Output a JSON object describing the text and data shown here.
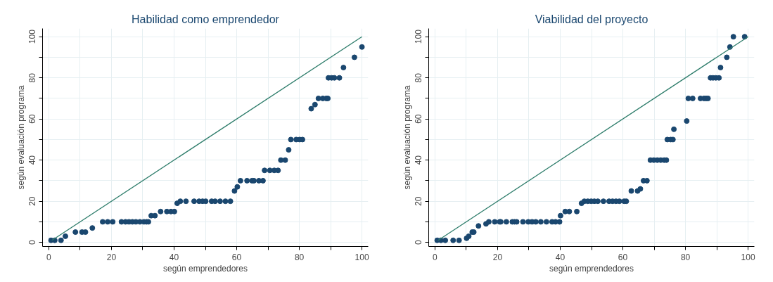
{
  "chart_data": [
    {
      "type": "scatter",
      "title": "Habilidad como emprendedor",
      "xlabel": "según emprendedores",
      "ylabel": "según evaluación programa",
      "xlim": [
        -2,
        102
      ],
      "ylim": [
        -2,
        104
      ],
      "xticks": [
        0,
        {
          "value": 10,
          "label": null
        },
        20,
        {
          "value": 30,
          "label": null
        },
        40,
        {
          "value": 50,
          "label": null
        },
        60,
        {
          "value": 70,
          "label": null
        },
        80,
        {
          "value": 90,
          "label": null
        },
        100
      ],
      "yticks": [
        0,
        {
          "value": 10,
          "label": null
        },
        20,
        {
          "value": 30,
          "label": null
        },
        40,
        {
          "value": 50,
          "label": null
        },
        60,
        {
          "value": 70,
          "label": null
        },
        80,
        {
          "value": 90,
          "label": null
        },
        100
      ],
      "grid": true,
      "series": [
        {
          "marker": "circle",
          "color": "#1a476f",
          "x": [
            0.7,
            1.9,
            3.9,
            5.3,
            8.5,
            10.6,
            11.7,
            13.9,
            17.2,
            18.8,
            20.4,
            23.2,
            24.5,
            25.6,
            26.7,
            27.8,
            29.1,
            30.4,
            31.2,
            31.8,
            32.7,
            33.9,
            35.7,
            37.7,
            39,
            40.1,
            41,
            42,
            43.8,
            46.4,
            48,
            49.1,
            50.1,
            52,
            53.1,
            54.7,
            56.4,
            58,
            59.3,
            60.2,
            61.2,
            63.3,
            64.9,
            65.5,
            67.1,
            68.4,
            68.9,
            70.6,
            72,
            73.2,
            74.1,
            75.5,
            76.6,
            77.3,
            79,
            80.1,
            81,
            83.8,
            85,
            86.1,
            87.5,
            88.6,
            89.1,
            89.3,
            90.3,
            91.2,
            92.8,
            94.1,
            97.6,
            100
          ],
          "values": [
            1,
            1,
            1,
            3,
            5,
            5,
            5,
            7,
            10,
            10,
            10,
            10,
            10,
            10,
            10,
            10,
            10,
            10,
            10,
            10,
            13,
            13,
            15,
            15,
            15,
            15,
            19,
            20,
            20,
            20,
            20,
            20,
            20,
            20,
            20,
            20,
            20,
            20,
            25,
            27,
            30,
            30,
            30,
            30,
            30,
            30,
            35,
            35,
            35,
            35,
            40,
            40,
            45,
            50,
            50,
            50,
            50,
            65,
            67,
            70,
            70,
            70,
            70,
            80,
            80,
            80,
            80,
            85,
            90,
            95
          ]
        },
        {
          "type": "line",
          "color": "#2e7d6b",
          "x": [
            1,
            100
          ],
          "values": [
            1,
            100
          ]
        }
      ]
    },
    {
      "type": "scatter",
      "title": "Viabilidad del proyecto",
      "xlabel": "según emprendedores",
      "ylabel": "según evaluación programa",
      "xlim": [
        -2,
        102
      ],
      "ylim": [
        -2,
        104
      ],
      "xticks": [
        0,
        {
          "value": 10,
          "label": null
        },
        20,
        {
          "value": 30,
          "label": null
        },
        40,
        {
          "value": 50,
          "label": null
        },
        60,
        {
          "value": 70,
          "label": null
        },
        80,
        {
          "value": 90,
          "label": null
        },
        100
      ],
      "yticks": [
        0,
        {
          "value": 10,
          "label": null
        },
        20,
        {
          "value": 30,
          "label": null
        },
        40,
        {
          "value": 50,
          "label": null
        },
        60,
        {
          "value": 70,
          "label": null
        },
        80,
        {
          "value": 90,
          "label": null
        },
        100
      ],
      "grid": true,
      "series": [
        {
          "marker": "circle",
          "color": "#1a476f",
          "x": [
            0.7,
            1.9,
            3.3,
            5.8,
            7.7,
            10.1,
            10.8,
            11.9,
            12.4,
            13.9,
            16.3,
            17.2,
            19.1,
            20.7,
            21,
            22.8,
            24.7,
            25.4,
            26.1,
            28.1,
            29.8,
            31,
            32.2,
            33.8,
            35.6,
            37.4,
            38.5,
            39.8,
            40.1,
            41.6,
            42.9,
            45.3,
            46.8,
            47.7,
            48.8,
            49.9,
            50.9,
            52,
            53.8,
            55.6,
            56.7,
            57.8,
            58.9,
            60.4,
            61.1,
            62.7,
            64.7,
            65.6,
            66.6,
            67.7,
            68.8,
            69.9,
            71,
            72.1,
            73.2,
            73.9,
            74.2,
            75.3,
            76,
            76.3,
            80.4,
            80.9,
            82.3,
            84.8,
            85.9,
            86.6,
            87.2,
            88,
            88.8,
            89.7,
            90.7,
            91.2,
            93.2,
            94.2,
            95.3,
            98.9
          ],
          "values": [
            1,
            1,
            1,
            1,
            1,
            2,
            3,
            5,
            5,
            8,
            9,
            10,
            10,
            10,
            10,
            10,
            10,
            10,
            10,
            10,
            10,
            10,
            10,
            10,
            10,
            10,
            10,
            10,
            13,
            15,
            15,
            15,
            19,
            20,
            20,
            20,
            20,
            20,
            20,
            20,
            20,
            20,
            20,
            20,
            20,
            25,
            25,
            26,
            30,
            30,
            40,
            40,
            40,
            40,
            40,
            40,
            50,
            50,
            50,
            55,
            59,
            70,
            70,
            70,
            70,
            70,
            70,
            80,
            80,
            80,
            80,
            85,
            90,
            95,
            100,
            100
          ]
        },
        {
          "type": "line",
          "color": "#2e7d6b",
          "x": [
            1,
            100
          ],
          "values": [
            1,
            100
          ]
        }
      ]
    }
  ]
}
